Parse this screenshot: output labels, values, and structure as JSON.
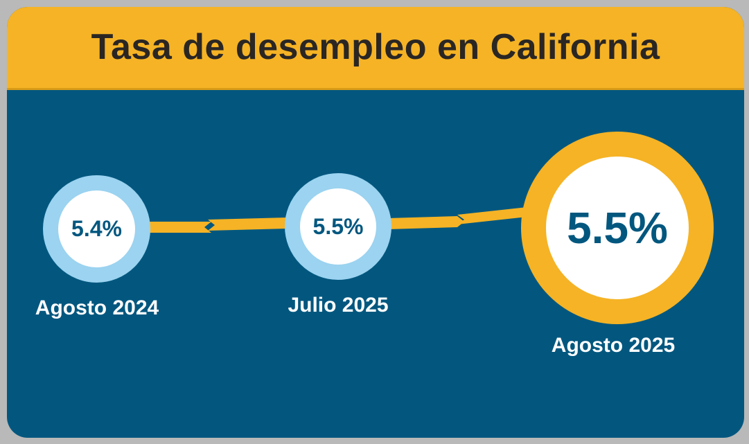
{
  "title": "Tasa de desempleo en California",
  "colors": {
    "background": "#03577f",
    "header": "#f5b325",
    "title_text": "#2a2624",
    "ring_past": "#9bd3f0",
    "ring_current": "#f5b325",
    "value_text": "#03577f",
    "label_text": "#ffffff"
  },
  "timeline": [
    {
      "period": "Agosto 2024",
      "value": "5.4%"
    },
    {
      "period": "Julio 2025",
      "value": "5.5%"
    },
    {
      "period": "Agosto 2025",
      "value": "5.5%"
    }
  ],
  "icons": [
    "chevron-right-icon",
    "chevron-right-icon"
  ]
}
